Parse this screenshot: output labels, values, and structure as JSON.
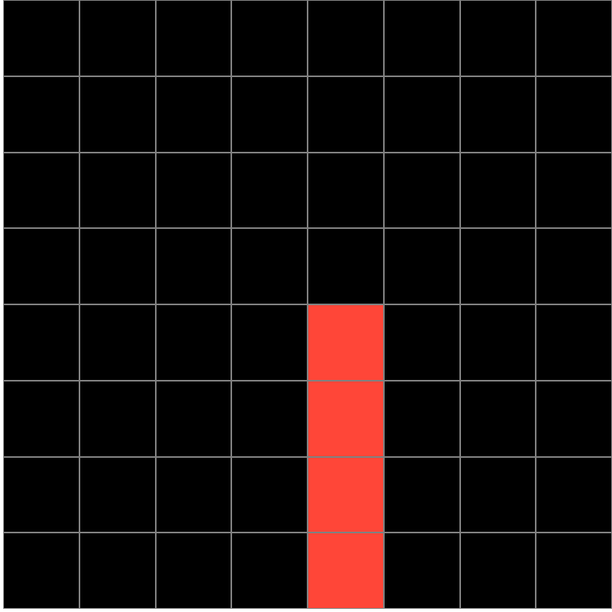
{
  "board": {
    "rows": 8,
    "cols": 8,
    "colors": {
      "empty": "#000000",
      "filled": "#ff4638",
      "grid": "#808080"
    },
    "cells": [
      [
        0,
        0,
        0,
        0,
        0,
        0,
        0,
        0
      ],
      [
        0,
        0,
        0,
        0,
        0,
        0,
        0,
        0
      ],
      [
        0,
        0,
        0,
        0,
        0,
        0,
        0,
        0
      ],
      [
        0,
        0,
        0,
        0,
        0,
        0,
        0,
        0
      ],
      [
        0,
        0,
        0,
        0,
        1,
        0,
        0,
        0
      ],
      [
        0,
        0,
        0,
        0,
        1,
        0,
        0,
        0
      ],
      [
        0,
        0,
        0,
        0,
        1,
        0,
        0,
        0
      ],
      [
        0,
        0,
        0,
        0,
        1,
        0,
        0,
        0
      ]
    ]
  }
}
